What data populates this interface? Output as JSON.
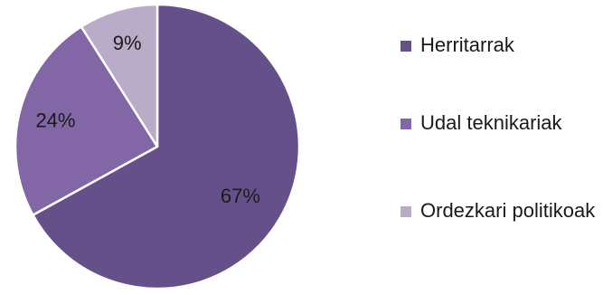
{
  "chart_data": {
    "type": "pie",
    "categories": [
      "Herritarrak",
      "Udal teknikariak",
      "Ordezkari politikoak"
    ],
    "values": [
      67,
      24,
      9
    ],
    "data_labels": [
      "67%",
      "24%",
      "9%"
    ],
    "colors": [
      "#66508a",
      "#8266a6",
      "#b8acc8"
    ],
    "start_angle_deg": 0,
    "direction": "clockwise",
    "legend_position": "right",
    "title": ""
  }
}
